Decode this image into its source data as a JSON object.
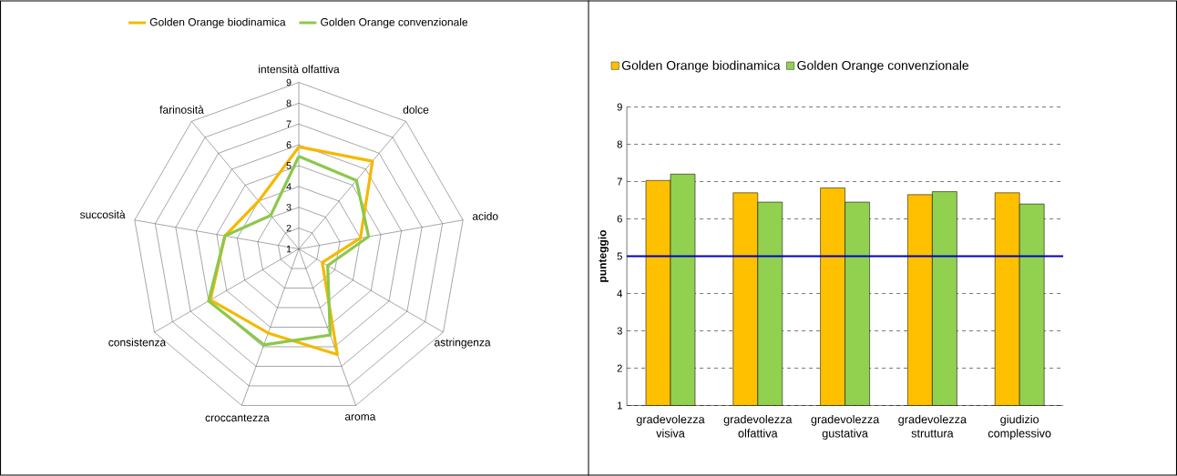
{
  "chart_data": [
    {
      "type": "radar",
      "categories": [
        "intensità olfattiva",
        "dolce",
        "acido",
        "astringenza",
        "aroma",
        "croccantezza",
        "consistenza",
        "succosità",
        "farinosità"
      ],
      "series": [
        {
          "name": "Golden Orange biodinamica",
          "color": "#f5b800",
          "values": [
            5.9,
            6.5,
            4.0,
            2.3,
            6.4,
            5.3,
            5.9,
            4.6,
            4.0
          ]
        },
        {
          "name": "Golden Orange convenzionale",
          "color": "#8cc84b",
          "values": [
            5.45,
            5.3,
            4.4,
            2.6,
            5.4,
            5.9,
            6.0,
            4.6,
            3.1
          ]
        }
      ],
      "ylim": [
        1,
        9
      ],
      "yticks": [
        1,
        2,
        3,
        4,
        5,
        6,
        7,
        8,
        9
      ],
      "legend": "top"
    },
    {
      "type": "bar",
      "categories": [
        "gradevolezza visiva",
        "gradevolezza olfattiva",
        "gradevolezza gustativa",
        "gradevolezza struttura",
        "giudizio complessivo"
      ],
      "series": [
        {
          "name": "Golden Orange biodinamica",
          "color": "#ffc000",
          "values": [
            7.03,
            6.7,
            6.83,
            6.65,
            6.7
          ]
        },
        {
          "name": "Golden Orange convenzionale",
          "color": "#92d050",
          "values": [
            7.2,
            6.45,
            6.45,
            6.73,
            6.4
          ]
        }
      ],
      "ylabel": "punteggio",
      "ylim": [
        1,
        9
      ],
      "yticks": [
        1,
        2,
        3,
        4,
        5,
        6,
        7,
        8,
        9
      ],
      "grid": "y",
      "legend": "top left",
      "ref_lines": [
        {
          "axis": "y",
          "value": 5,
          "color": "#0000c0"
        }
      ]
    }
  ]
}
